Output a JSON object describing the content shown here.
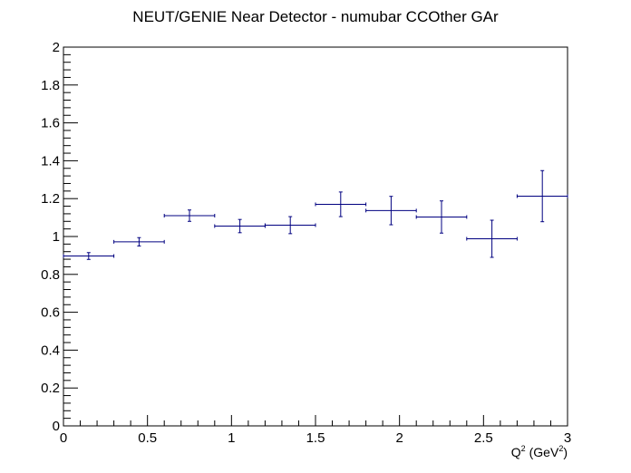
{
  "chart_data": {
    "type": "scatter",
    "title": "NEUT/GENIE Near Detector - numubar CCOther GAr",
    "xlabel": "Q",
    "xlabel_sup1": "2",
    "xlabel_unit": "(GeV",
    "xlabel_sup2": "2",
    "xlabel_close": ")",
    "ylabel": "",
    "xlim": [
      0,
      3
    ],
    "ylim": [
      0,
      2
    ],
    "x_major_ticks": [
      0,
      0.5,
      1,
      1.5,
      2,
      2.5,
      3
    ],
    "x_tick_labels": [
      "0",
      "0.5",
      "1",
      "1.5",
      "2",
      "2.5",
      "3"
    ],
    "y_major_ticks": [
      0,
      0.2,
      0.4,
      0.6,
      0.8,
      1,
      1.2,
      1.4,
      1.6,
      1.8,
      2
    ],
    "y_tick_labels": [
      "0",
      "0.2",
      "0.4",
      "0.6",
      "0.8",
      "1",
      "1.2",
      "1.4",
      "1.6",
      "1.8",
      "2"
    ],
    "grid": false,
    "color": "#000080",
    "series": [
      {
        "points": [
          {
            "x": 0.15,
            "xerr": 0.15,
            "y": 0.897,
            "yerr": 0.018
          },
          {
            "x": 0.45,
            "xerr": 0.15,
            "y": 0.972,
            "yerr": 0.022
          },
          {
            "x": 0.75,
            "xerr": 0.15,
            "y": 1.11,
            "yerr": 0.03
          },
          {
            "x": 1.05,
            "xerr": 0.15,
            "y": 1.055,
            "yerr": 0.035
          },
          {
            "x": 1.35,
            "xerr": 0.15,
            "y": 1.06,
            "yerr": 0.045
          },
          {
            "x": 1.65,
            "xerr": 0.15,
            "y": 1.17,
            "yerr": 0.065
          },
          {
            "x": 1.95,
            "xerr": 0.15,
            "y": 1.137,
            "yerr": 0.075
          },
          {
            "x": 2.25,
            "xerr": 0.15,
            "y": 1.103,
            "yerr": 0.085
          },
          {
            "x": 2.55,
            "xerr": 0.15,
            "y": 0.988,
            "yerr": 0.098
          },
          {
            "x": 2.85,
            "xerr": 0.15,
            "y": 1.213,
            "yerr": 0.135
          }
        ]
      }
    ]
  }
}
